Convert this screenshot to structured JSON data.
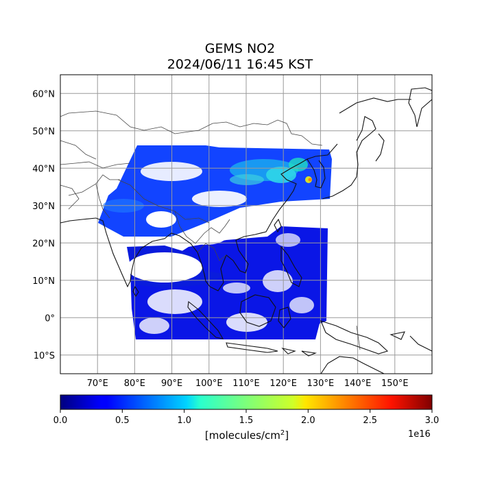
{
  "title": {
    "line1": "GEMS NO2",
    "line2": "2024/06/11 16:45 KST"
  },
  "map": {
    "lon_range": [
      60,
      160
    ],
    "lat_range": [
      -15,
      65
    ],
    "lon_ticks": [
      "70°E",
      "80°E",
      "90°E",
      "100°E",
      "110°E",
      "120°E",
      "130°E",
      "140°E",
      "150°E"
    ],
    "lat_ticks": [
      "60°N",
      "50°N",
      "40°N",
      "30°N",
      "20°N",
      "10°N",
      "0°",
      "10°S"
    ],
    "gridlines": true
  },
  "colorbar": {
    "colormap": "jet",
    "range": [
      0.0,
      3.0
    ],
    "ticks": [
      "0.0",
      "0.5",
      "1.0",
      "1.5",
      "2.0",
      "2.5",
      "3.0"
    ],
    "scale": "1e16",
    "units_label": "[molecules/cm",
    "units_sup": "2",
    "units_close": "]"
  }
}
